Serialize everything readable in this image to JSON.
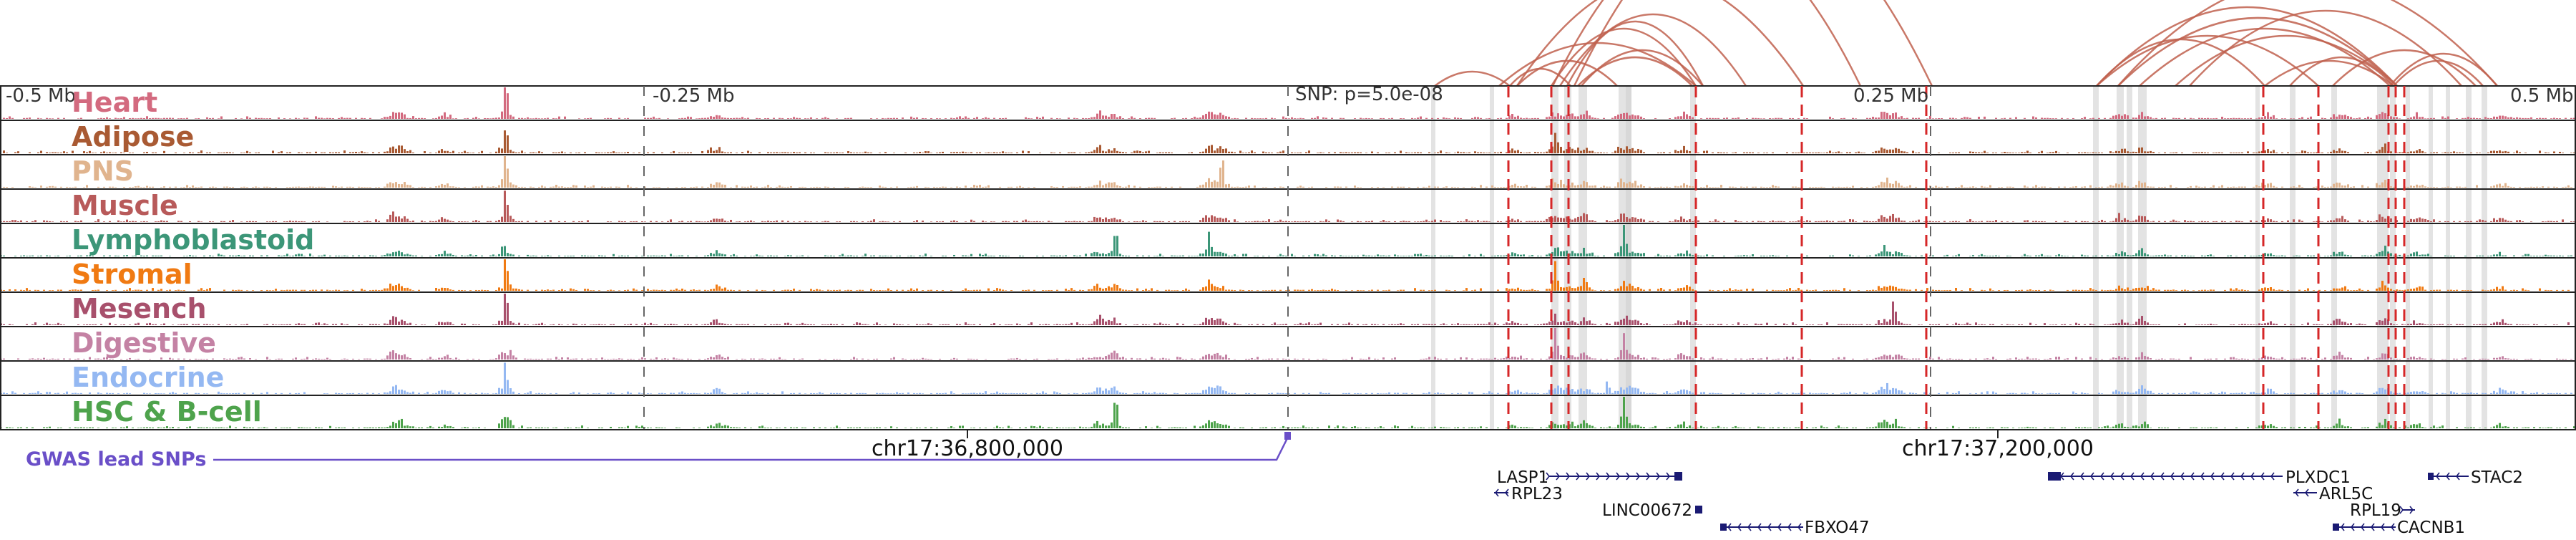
{
  "scale_labels": {
    "left": "-0.5 Mb",
    "left_mid": "-0.25 Mb",
    "right_mid": "0.25 Mb",
    "right": "0.5 Mb"
  },
  "snp_label": "SNP: p=5.0e-08",
  "tracks": [
    {
      "id": "heart",
      "label": "Heart",
      "color": "#d36a7f"
    },
    {
      "id": "adipose",
      "label": "Adipose",
      "color": "#a95a33"
    },
    {
      "id": "pns",
      "label": "PNS",
      "color": "#e0b48e"
    },
    {
      "id": "muscle",
      "label": "Muscle",
      "color": "#b85a5a"
    },
    {
      "id": "lymphoblastoid",
      "label": "Lymphoblastoid",
      "color": "#3c9678"
    },
    {
      "id": "stromal",
      "label": "Stromal",
      "color": "#f07a12"
    },
    {
      "id": "mesench",
      "label": "Mesench",
      "color": "#a8506c"
    },
    {
      "id": "digestive",
      "label": "Digestive",
      "color": "#c482a4"
    },
    {
      "id": "endocrine",
      "label": "Endocrine",
      "color": "#94b8f2"
    },
    {
      "id": "hsc_bcell",
      "label": "HSC & B-cell",
      "color": "#4ea34c"
    }
  ],
  "gwas_label": "GWAS lead SNPs",
  "coordinates": [
    "chr17:36,800,000",
    "chr17:37,200,000"
  ],
  "genes": [
    "LASP1",
    "RPL23",
    "LINC00672",
    "FBXO47",
    "PLXDC1",
    "ARL5C",
    "RPL19",
    "CACNB1",
    "STAC2"
  ],
  "colors": {
    "loop": "#c0604e",
    "snp_line": "#d62728",
    "highlight": "#d0d0d0",
    "gene": "#1a1a73",
    "gwas": "#6a4fc8"
  }
}
